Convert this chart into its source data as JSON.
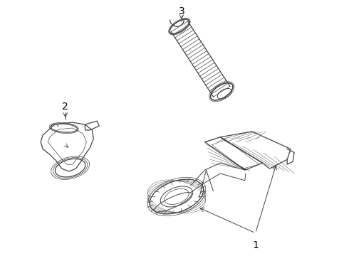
{
  "background_color": "#ffffff",
  "line_color": "#444444",
  "label_color": "#000000",
  "figsize": [
    4.9,
    3.6
  ],
  "dpi": 100,
  "label_fontsize": 10
}
